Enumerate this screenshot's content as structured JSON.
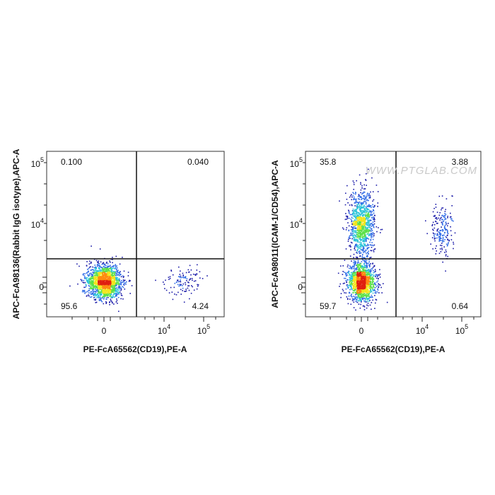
{
  "chart_data": [
    {
      "type": "scatter",
      "subtype": "flow-cytometry-density-dot-plot",
      "xlabel": "PE-FcA65562(CD19),PE-A",
      "ylabel": "APC-FcA98136(Rabbit IgG isotype),APC-A",
      "x_scale": "biexponential",
      "y_scale": "biexponential",
      "x_tick_labels": [
        {
          "base": "0",
          "exp": ""
        },
        {
          "base": "10",
          "exp": "4"
        },
        {
          "base": "10",
          "exp": "5"
        }
      ],
      "y_tick_labels": [
        {
          "base": "0",
          "exp": ""
        },
        {
          "base": "10",
          "exp": "4"
        },
        {
          "base": "10",
          "exp": "5"
        }
      ],
      "gate_lines": "quadrant",
      "quadrants": {
        "top_left": "0.100",
        "top_right": "0.040",
        "bottom_left": "95.6",
        "bottom_right": "4.24"
      },
      "populations": [
        {
          "x": 0,
          "y": 0,
          "n": 1700,
          "spread_x": 0.55,
          "spread_y": 0.55
        },
        {
          "x": 30000.0,
          "y": 0,
          "n": 110,
          "spread_x": 0.6,
          "spread_y": 0.45
        }
      ],
      "colormap": [
        "#1a1aa8",
        "#2d6ae6",
        "#2bc4d8",
        "#5be04a",
        "#f2e51c",
        "#ff8a10",
        "#e01f10"
      ]
    },
    {
      "type": "scatter",
      "subtype": "flow-cytometry-density-dot-plot",
      "xlabel": "PE-FcA65562(CD19),PE-A",
      "ylabel": "APC-FcA98011(ICAM-1/CD54),APC-A",
      "x_scale": "biexponential",
      "y_scale": "biexponential",
      "x_tick_labels": [
        {
          "base": "0",
          "exp": ""
        },
        {
          "base": "10",
          "exp": "4"
        },
        {
          "base": "10",
          "exp": "5"
        }
      ],
      "y_tick_labels": [
        {
          "base": "0",
          "exp": ""
        },
        {
          "base": "10",
          "exp": "4"
        },
        {
          "base": "10",
          "exp": "5"
        }
      ],
      "gate_lines": "quadrant",
      "quadrants": {
        "top_left": "35.8",
        "top_right": "3.88",
        "bottom_left": "59.7",
        "bottom_right": "0.64"
      },
      "populations": [
        {
          "x": 0,
          "y": 0,
          "n": 1500,
          "spread_x": 0.45,
          "spread_y": 0.6
        },
        {
          "x": 0,
          "y": 10000.0,
          "n": 1100,
          "spread_x": 0.4,
          "spread_y": 1.0
        },
        {
          "x": 30000.0,
          "y": 8000.0,
          "n": 200,
          "spread_x": 0.35,
          "spread_y": 0.8
        }
      ],
      "colormap": [
        "#1a1aa8",
        "#2d6ae6",
        "#2bc4d8",
        "#5be04a",
        "#f2e51c",
        "#ff8a10",
        "#e01f10"
      ]
    }
  ],
  "watermark": "WWW.PTGLAB.COM"
}
